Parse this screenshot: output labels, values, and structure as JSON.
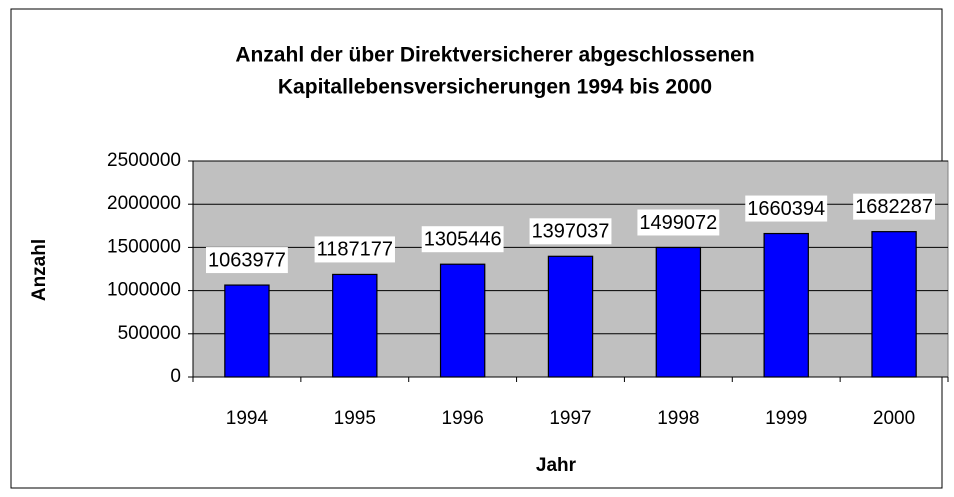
{
  "chart_data": {
    "type": "bar",
    "title": [
      "Anzahl der über Direktversicherer abgeschlossenen",
      "Kapitallebensversicherungen 1994 bis 2000"
    ],
    "x_label": "Jahr",
    "y_label": "Anzahl",
    "categories": [
      "1994",
      "1995",
      "1996",
      "1997",
      "1998",
      "1999",
      "2000"
    ],
    "values": [
      1063977,
      1187177,
      1305446,
      1397037,
      1499072,
      1660394,
      1682287
    ],
    "color": "#0000ff",
    "background": "#c0c0c0",
    "ylim": [
      0,
      2500000
    ],
    "yticks": [
      0,
      500000,
      1000000,
      1500000,
      2000000,
      2500000
    ],
    "grid": true
  }
}
